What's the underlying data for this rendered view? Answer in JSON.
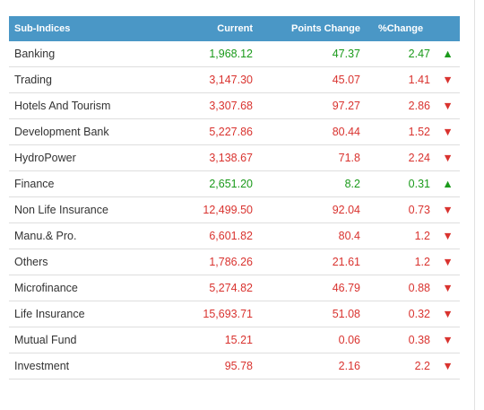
{
  "table": {
    "headers": {
      "name": "Sub-Indices",
      "current": "Current",
      "points_change": "Points Change",
      "percent_change": "%Change"
    },
    "rows": [
      {
        "name": "Banking",
        "current": "1,968.12",
        "points": "47.37",
        "percent": "2.47",
        "direction": "up"
      },
      {
        "name": "Trading",
        "current": "3,147.30",
        "points": "45.07",
        "percent": "1.41",
        "direction": "down"
      },
      {
        "name": "Hotels And Tourism",
        "current": "3,307.68",
        "points": "97.27",
        "percent": "2.86",
        "direction": "down"
      },
      {
        "name": "Development Bank",
        "current": "5,227.86",
        "points": "80.44",
        "percent": "1.52",
        "direction": "down"
      },
      {
        "name": "HydroPower",
        "current": "3,138.67",
        "points": "71.8",
        "percent": "2.24",
        "direction": "down"
      },
      {
        "name": "Finance",
        "current": "2,651.20",
        "points": "8.2",
        "percent": "0.31",
        "direction": "up"
      },
      {
        "name": "Non Life Insurance",
        "current": "12,499.50",
        "points": "92.04",
        "percent": "0.73",
        "direction": "down"
      },
      {
        "name": "Manu.& Pro.",
        "current": "6,601.82",
        "points": "80.4",
        "percent": "1.2",
        "direction": "down"
      },
      {
        "name": "Others",
        "current": "1,786.26",
        "points": "21.61",
        "percent": "1.2",
        "direction": "down"
      },
      {
        "name": "Microfinance",
        "current": "5,274.82",
        "points": "46.79",
        "percent": "0.88",
        "direction": "down"
      },
      {
        "name": "Life Insurance",
        "current": "15,693.71",
        "points": "51.08",
        "percent": "0.32",
        "direction": "down"
      },
      {
        "name": "Mutual Fund",
        "current": "15.21",
        "points": "0.06",
        "percent": "0.38",
        "direction": "down"
      },
      {
        "name": "Investment",
        "current": "95.78",
        "points": "2.16",
        "percent": "2.2",
        "direction": "down"
      }
    ]
  },
  "colors": {
    "header_bg": "#4a97c6",
    "up": "#1a9a1a",
    "down": "#d9332f"
  },
  "icons": {
    "up": "triangle-up-icon",
    "down": "triangle-down-icon"
  }
}
